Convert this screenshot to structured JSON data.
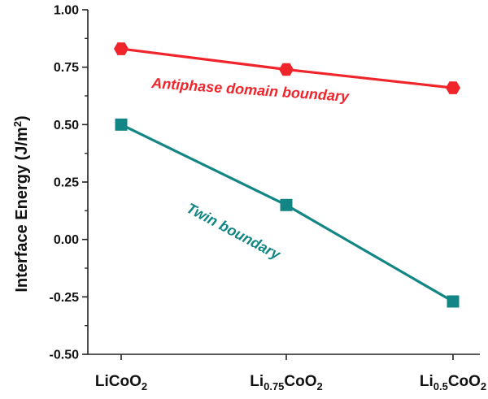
{
  "chart_data": {
    "type": "line",
    "title": "",
    "xlabel": "",
    "ylabel": "Interface Energy (J/m²)",
    "ylabel_main": "Interface Energy (J/m",
    "ylabel_sup": "2",
    "ylabel_close": ")",
    "categories": [
      "LiCoO2",
      "Li0.75CoO2",
      "Li0.5CoO2"
    ],
    "category_parts": [
      {
        "base": "LiCoO",
        "sub1": "",
        "mid": "",
        "sub2": "2"
      },
      {
        "base": "Li",
        "sub1": "0.75",
        "mid": "CoO",
        "sub2": "2"
      },
      {
        "base": "Li",
        "sub1": "0.5",
        "mid": "CoO",
        "sub2": "2"
      }
    ],
    "ylim": [
      -0.5,
      1.0
    ],
    "yticks": [
      "1.00",
      "0.75",
      "0.50",
      "0.25",
      "0.00",
      "-0.25",
      "-0.50"
    ],
    "ytick_values": [
      1.0,
      0.75,
      0.5,
      0.25,
      0.0,
      -0.25,
      -0.5
    ],
    "grid": false,
    "legend": "none",
    "series": [
      {
        "name": "Antiphase domain boundary",
        "values": [
          0.83,
          0.74,
          0.66
        ],
        "color": "#f0252b",
        "marker": "hexagon"
      },
      {
        "name": "Twin boundary",
        "values": [
          0.5,
          0.15,
          -0.27
        ],
        "color": "#128585",
        "marker": "square"
      }
    ]
  }
}
